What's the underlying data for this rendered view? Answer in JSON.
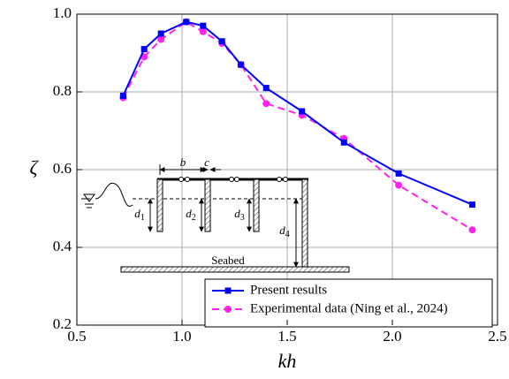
{
  "chart_data": {
    "type": "line",
    "x_label": "kh",
    "y_label": "ζ",
    "x": [
      0.72,
      0.82,
      0.9,
      1.02,
      1.1,
      1.19,
      1.28,
      1.4,
      1.57,
      1.77,
      2.03,
      2.38
    ],
    "series": [
      {
        "name": "Present results",
        "color": "#0000ff",
        "marker": "square",
        "dashed": false,
        "values": [
          0.79,
          0.91,
          0.95,
          0.98,
          0.97,
          0.93,
          0.87,
          0.81,
          0.75,
          0.67,
          0.59,
          0.51
        ]
      },
      {
        "name": "Experimental data (Ning et al., 2024)",
        "color": "#ff22ee",
        "marker": "circle",
        "dashed": true,
        "values": [
          0.785,
          0.89,
          0.935,
          0.98,
          0.955,
          0.925,
          0.87,
          0.77,
          0.74,
          0.68,
          0.56,
          0.445
        ]
      }
    ],
    "xlim": [
      0.5,
      2.5
    ],
    "ylim": [
      0.2,
      1.0
    ],
    "xticks": [
      0.5,
      {
        "value": 1.0,
        "label": "1.0"
      },
      1.5,
      {
        "value": 2.0,
        "label": "2.0"
      },
      2.5
    ],
    "yticks": [
      0.2,
      0.4,
      0.6,
      0.8,
      {
        "value": 1.0,
        "label": "1.0"
      }
    ],
    "grid": true,
    "legend": "lower right",
    "annotations": [
      "b",
      "c",
      "d1",
      "d2",
      "d3",
      "d4",
      "Seabed"
    ]
  }
}
